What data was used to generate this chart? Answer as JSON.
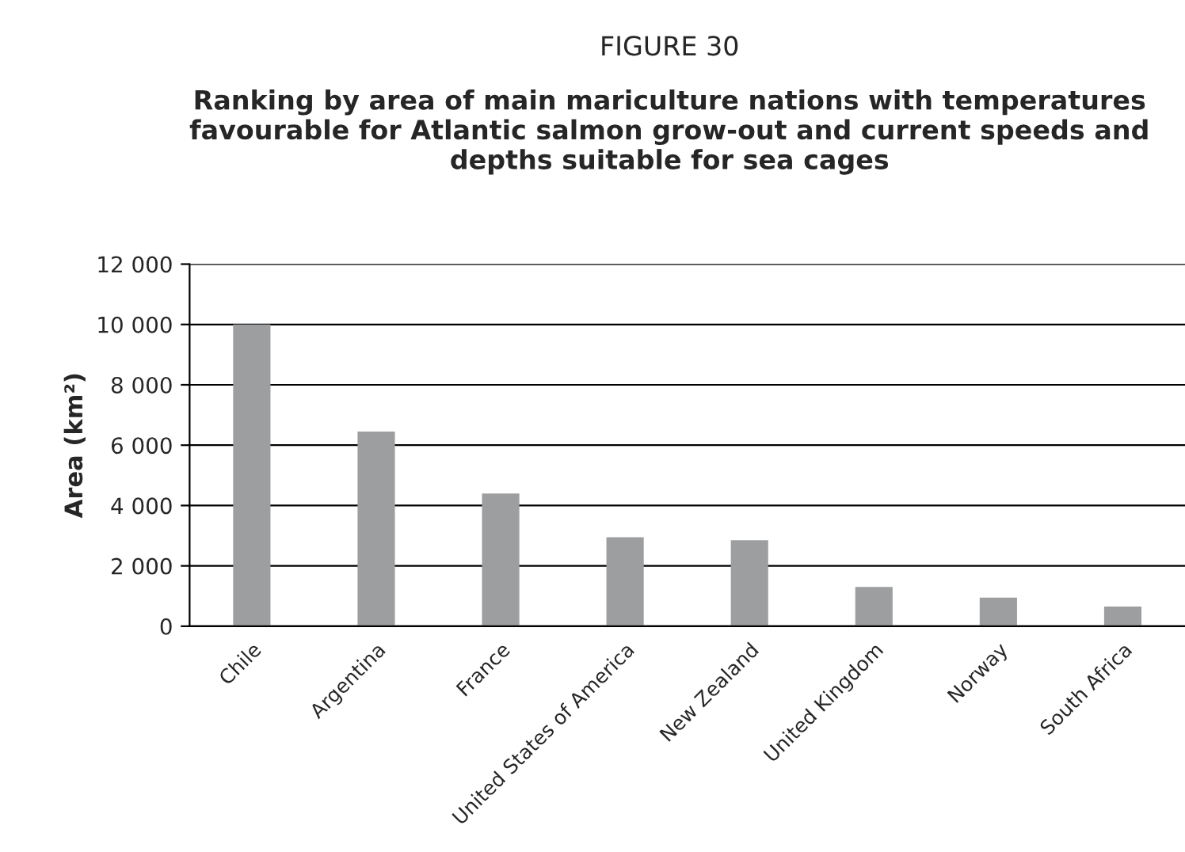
{
  "chart_data": {
    "type": "bar",
    "title": "FIGURE 30",
    "subtitle": "Ranking by area of main mariculture nations with temperatures favourable for Atlantic salmon grow-out and current speeds and depths suitable for sea cages",
    "ylabel": "Area (km²)",
    "categories": [
      "Chile",
      "Argentina",
      "France",
      "United States of America",
      "New Zealand",
      "United Kingdom",
      "Norway",
      "South Africa"
    ],
    "values": [
      10000,
      6450,
      4400,
      2950,
      2850,
      1300,
      950,
      650
    ],
    "color": "#9d9ea0",
    "ylim": [
      0,
      12000
    ],
    "yticks": [
      0,
      {
        "value": 2000,
        "label": "2 000"
      },
      {
        "value": 4000,
        "label": "4 000"
      },
      {
        "value": 6000,
        "label": "6 000"
      },
      {
        "value": 8000,
        "label": "8 000"
      },
      {
        "value": 10000,
        "label": "10 000"
      },
      {
        "value": 12000,
        "label": "12 000"
      }
    ],
    "grid": "y"
  }
}
